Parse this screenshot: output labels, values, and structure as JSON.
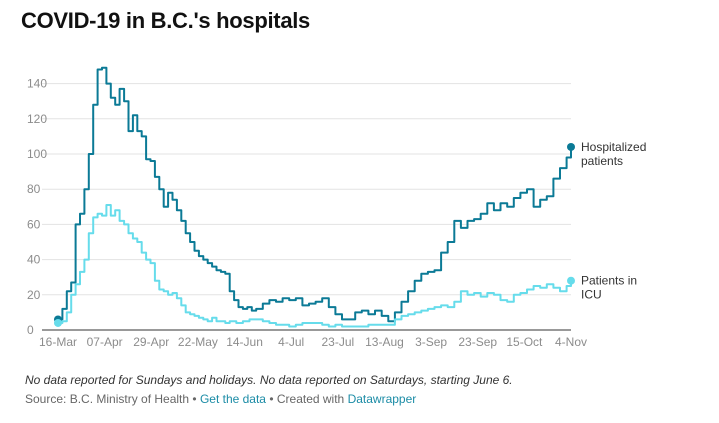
{
  "header": {
    "title": "COVID-19 in B.C.'s hospitals"
  },
  "footer": {
    "note": "No data reported for Sundays and holidays. No data reported on Saturdays, starting June 6.",
    "source_prefix": "Source: B.C. Ministry of Health •",
    "get_data_link": "Get the data",
    "created_with": "• Created with",
    "datawrapper_link": "Datawrapper"
  },
  "chart_data": {
    "type": "line",
    "x_axis": {
      "type": "date",
      "range": [
        "2020-03-16",
        "2020-11-04"
      ],
      "tick_labels": [
        "16-Mar",
        "07-Apr",
        "29-Apr",
        "22-May",
        "14-Jun",
        "4-Jul",
        "23-Jul",
        "13-Aug",
        "3-Sep",
        "23-Sep",
        "15-Oct",
        "4-Nov"
      ]
    },
    "y_axis": {
      "ylim": [
        0,
        150
      ],
      "ticks": [
        0,
        20,
        40,
        60,
        80,
        100,
        120,
        140
      ]
    },
    "grid": true,
    "legend": "inline labels at line ends",
    "colors": {
      "hospitalized": "#0b7a96",
      "icu": "#66dceb"
    },
    "series": [
      {
        "name": "Hospitalized patients",
        "label_lines": [
          "Hospitalized",
          "patients"
        ],
        "key": "hospitalized",
        "points": [
          [
            "2020-03-16",
            6
          ],
          [
            "2020-03-18",
            12
          ],
          [
            "2020-03-20",
            22
          ],
          [
            "2020-03-22",
            27
          ],
          [
            "2020-03-24",
            60
          ],
          [
            "2020-03-26",
            66
          ],
          [
            "2020-03-28",
            80
          ],
          [
            "2020-03-30",
            100
          ],
          [
            "2020-04-01",
            128
          ],
          [
            "2020-04-03",
            148
          ],
          [
            "2020-04-05",
            149
          ],
          [
            "2020-04-07",
            140
          ],
          [
            "2020-04-09",
            132
          ],
          [
            "2020-04-11",
            128
          ],
          [
            "2020-04-13",
            137
          ],
          [
            "2020-04-15",
            130
          ],
          [
            "2020-04-17",
            113
          ],
          [
            "2020-04-19",
            122
          ],
          [
            "2020-04-21",
            113
          ],
          [
            "2020-04-23",
            110
          ],
          [
            "2020-04-25",
            97
          ],
          [
            "2020-04-27",
            96
          ],
          [
            "2020-04-29",
            87
          ],
          [
            "2020-05-01",
            80
          ],
          [
            "2020-05-03",
            70
          ],
          [
            "2020-05-05",
            78
          ],
          [
            "2020-05-07",
            74
          ],
          [
            "2020-05-09",
            68
          ],
          [
            "2020-05-11",
            62
          ],
          [
            "2020-05-13",
            55
          ],
          [
            "2020-05-15",
            50
          ],
          [
            "2020-05-17",
            45
          ],
          [
            "2020-05-19",
            42
          ],
          [
            "2020-05-21",
            40
          ],
          [
            "2020-05-23",
            38
          ],
          [
            "2020-05-25",
            36
          ],
          [
            "2020-05-27",
            34
          ],
          [
            "2020-05-29",
            33
          ],
          [
            "2020-05-31",
            32
          ],
          [
            "2020-06-02",
            22
          ],
          [
            "2020-06-04",
            17
          ],
          [
            "2020-06-06",
            13
          ],
          [
            "2020-06-08",
            12
          ],
          [
            "2020-06-10",
            13
          ],
          [
            "2020-06-12",
            11
          ],
          [
            "2020-06-14",
            12
          ],
          [
            "2020-06-17",
            15
          ],
          [
            "2020-06-20",
            17
          ],
          [
            "2020-06-23",
            16
          ],
          [
            "2020-06-26",
            18
          ],
          [
            "2020-06-29",
            17
          ],
          [
            "2020-07-02",
            18
          ],
          [
            "2020-07-05",
            14
          ],
          [
            "2020-07-08",
            15
          ],
          [
            "2020-07-11",
            16
          ],
          [
            "2020-07-14",
            18
          ],
          [
            "2020-07-17",
            13
          ],
          [
            "2020-07-20",
            9
          ],
          [
            "2020-07-23",
            6
          ],
          [
            "2020-07-26",
            6
          ],
          [
            "2020-07-29",
            10
          ],
          [
            "2020-08-01",
            11
          ],
          [
            "2020-08-04",
            9
          ],
          [
            "2020-08-07",
            11
          ],
          [
            "2020-08-10",
            8
          ],
          [
            "2020-08-13",
            5
          ],
          [
            "2020-08-16",
            10
          ],
          [
            "2020-08-19",
            16
          ],
          [
            "2020-08-22",
            22
          ],
          [
            "2020-08-25",
            28
          ],
          [
            "2020-08-28",
            32
          ],
          [
            "2020-08-31",
            33
          ],
          [
            "2020-09-03",
            34
          ],
          [
            "2020-09-06",
            44
          ],
          [
            "2020-09-09",
            50
          ],
          [
            "2020-09-12",
            62
          ],
          [
            "2020-09-15",
            58
          ],
          [
            "2020-09-18",
            62
          ],
          [
            "2020-09-21",
            63
          ],
          [
            "2020-09-24",
            66
          ],
          [
            "2020-09-27",
            72
          ],
          [
            "2020-09-30",
            68
          ],
          [
            "2020-10-03",
            72
          ],
          [
            "2020-10-06",
            70
          ],
          [
            "2020-10-09",
            75
          ],
          [
            "2020-10-12",
            78
          ],
          [
            "2020-10-15",
            80
          ],
          [
            "2020-10-18",
            70
          ],
          [
            "2020-10-21",
            74
          ],
          [
            "2020-10-24",
            76
          ],
          [
            "2020-10-27",
            86
          ],
          [
            "2020-10-30",
            92
          ],
          [
            "2020-11-02",
            98
          ],
          [
            "2020-11-04",
            104
          ]
        ]
      },
      {
        "name": "Patients in ICU",
        "label_lines": [
          "Patients in",
          "ICU"
        ],
        "key": "icu",
        "points": [
          [
            "2020-03-16",
            4
          ],
          [
            "2020-03-18",
            5
          ],
          [
            "2020-03-20",
            10
          ],
          [
            "2020-03-22",
            20
          ],
          [
            "2020-03-24",
            26
          ],
          [
            "2020-03-26",
            33
          ],
          [
            "2020-03-28",
            40
          ],
          [
            "2020-03-30",
            55
          ],
          [
            "2020-04-01",
            64
          ],
          [
            "2020-04-03",
            66
          ],
          [
            "2020-04-05",
            65
          ],
          [
            "2020-04-07",
            71
          ],
          [
            "2020-04-09",
            65
          ],
          [
            "2020-04-11",
            68
          ],
          [
            "2020-04-13",
            62
          ],
          [
            "2020-04-15",
            60
          ],
          [
            "2020-04-17",
            55
          ],
          [
            "2020-04-19",
            52
          ],
          [
            "2020-04-21",
            50
          ],
          [
            "2020-04-23",
            44
          ],
          [
            "2020-04-25",
            40
          ],
          [
            "2020-04-27",
            38
          ],
          [
            "2020-04-29",
            28
          ],
          [
            "2020-05-01",
            23
          ],
          [
            "2020-05-03",
            22
          ],
          [
            "2020-05-05",
            20
          ],
          [
            "2020-05-07",
            21
          ],
          [
            "2020-05-09",
            18
          ],
          [
            "2020-05-11",
            14
          ],
          [
            "2020-05-13",
            10
          ],
          [
            "2020-05-15",
            9
          ],
          [
            "2020-05-17",
            8
          ],
          [
            "2020-05-19",
            7
          ],
          [
            "2020-05-21",
            6
          ],
          [
            "2020-05-23",
            5
          ],
          [
            "2020-05-25",
            7
          ],
          [
            "2020-05-27",
            5
          ],
          [
            "2020-05-29",
            5
          ],
          [
            "2020-05-31",
            4
          ],
          [
            "2020-06-02",
            5
          ],
          [
            "2020-06-05",
            4
          ],
          [
            "2020-06-08",
            5
          ],
          [
            "2020-06-11",
            6
          ],
          [
            "2020-06-14",
            6
          ],
          [
            "2020-06-17",
            5
          ],
          [
            "2020-06-20",
            4
          ],
          [
            "2020-06-23",
            3
          ],
          [
            "2020-06-26",
            3
          ],
          [
            "2020-06-29",
            2
          ],
          [
            "2020-07-02",
            3
          ],
          [
            "2020-07-05",
            4
          ],
          [
            "2020-07-08",
            4
          ],
          [
            "2020-07-11",
            4
          ],
          [
            "2020-07-14",
            3
          ],
          [
            "2020-07-17",
            2
          ],
          [
            "2020-07-20",
            3
          ],
          [
            "2020-07-23",
            2
          ],
          [
            "2020-07-26",
            2
          ],
          [
            "2020-07-29",
            2
          ],
          [
            "2020-08-01",
            2
          ],
          [
            "2020-08-04",
            3
          ],
          [
            "2020-08-07",
            3
          ],
          [
            "2020-08-10",
            3
          ],
          [
            "2020-08-13",
            3
          ],
          [
            "2020-08-16",
            6
          ],
          [
            "2020-08-19",
            8
          ],
          [
            "2020-08-22",
            9
          ],
          [
            "2020-08-25",
            10
          ],
          [
            "2020-08-28",
            11
          ],
          [
            "2020-08-31",
            12
          ],
          [
            "2020-09-03",
            13
          ],
          [
            "2020-09-06",
            14
          ],
          [
            "2020-09-09",
            13
          ],
          [
            "2020-09-12",
            16
          ],
          [
            "2020-09-15",
            22
          ],
          [
            "2020-09-18",
            20
          ],
          [
            "2020-09-21",
            21
          ],
          [
            "2020-09-24",
            19
          ],
          [
            "2020-09-27",
            21
          ],
          [
            "2020-09-30",
            20
          ],
          [
            "2020-10-03",
            17
          ],
          [
            "2020-10-06",
            16
          ],
          [
            "2020-10-09",
            20
          ],
          [
            "2020-10-12",
            21
          ],
          [
            "2020-10-15",
            23
          ],
          [
            "2020-10-18",
            25
          ],
          [
            "2020-10-21",
            24
          ],
          [
            "2020-10-24",
            26
          ],
          [
            "2020-10-27",
            24
          ],
          [
            "2020-10-30",
            22
          ],
          [
            "2020-11-02",
            25
          ],
          [
            "2020-11-04",
            28
          ]
        ]
      }
    ]
  }
}
